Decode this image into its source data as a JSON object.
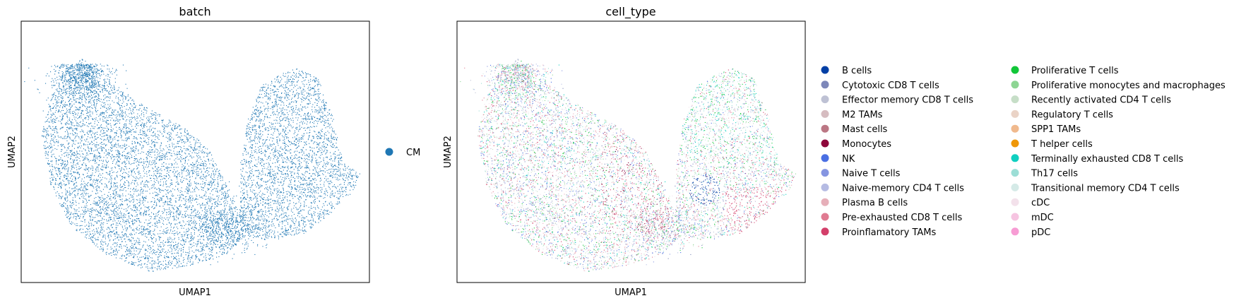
{
  "chart_data": [
    {
      "type": "scatter",
      "title": "batch",
      "xlabel": "UMAP1",
      "ylabel": "UMAP2",
      "grid": false,
      "ticks": false,
      "legend_position": "right",
      "legend": [
        {
          "name": "CM",
          "color": "#1f77b4"
        }
      ]
    },
    {
      "type": "scatter",
      "title": "cell_type",
      "xlabel": "UMAP1",
      "ylabel": "UMAP2",
      "grid": false,
      "ticks": false,
      "legend_position": "right",
      "legend": [
        {
          "name": "B cells",
          "color": "#023fa5"
        },
        {
          "name": "Cytotoxic CD8 T cells",
          "color": "#7d87b9"
        },
        {
          "name": "Effector memory CD8 T cells",
          "color": "#bec1d4"
        },
        {
          "name": "M2 TAMs",
          "color": "#d6bcc0"
        },
        {
          "name": "Mast cells",
          "color": "#bb7784"
        },
        {
          "name": "Monocytes",
          "color": "#8e063b"
        },
        {
          "name": "NK",
          "color": "#4a6fe3"
        },
        {
          "name": "Naive T cells",
          "color": "#8595e1"
        },
        {
          "name": "Naive-memory CD4 T cells",
          "color": "#b5bbe3"
        },
        {
          "name": "Plasma B cells",
          "color": "#e6afb9"
        },
        {
          "name": "Pre-exhausted CD8 T cells",
          "color": "#e07b91"
        },
        {
          "name": "Proinflamatory TAMs",
          "color": "#d33f6a"
        },
        {
          "name": "Proliferative T cells",
          "color": "#11c638"
        },
        {
          "name": "Proliferative monocytes and macrophages",
          "color": "#8dd593"
        },
        {
          "name": "Recently activated CD4 T cells",
          "color": "#c6dec7"
        },
        {
          "name": "Regulatory T cells",
          "color": "#ead3c6"
        },
        {
          "name": "SPP1 TAMs",
          "color": "#f0b98d"
        },
        {
          "name": "T helper cells",
          "color": "#ef9708"
        },
        {
          "name": "Terminally exhausted CD8 T cells",
          "color": "#0fcfc0"
        },
        {
          "name": "Th17 cells",
          "color": "#9cded6"
        },
        {
          "name": "Transitional memory CD4 T cells",
          "color": "#d5eae7"
        },
        {
          "name": "cDC",
          "color": "#f3e1eb"
        },
        {
          "name": "mDC",
          "color": "#f6c4e1"
        },
        {
          "name": "pDC",
          "color": "#f79cd4"
        }
      ]
    }
  ]
}
